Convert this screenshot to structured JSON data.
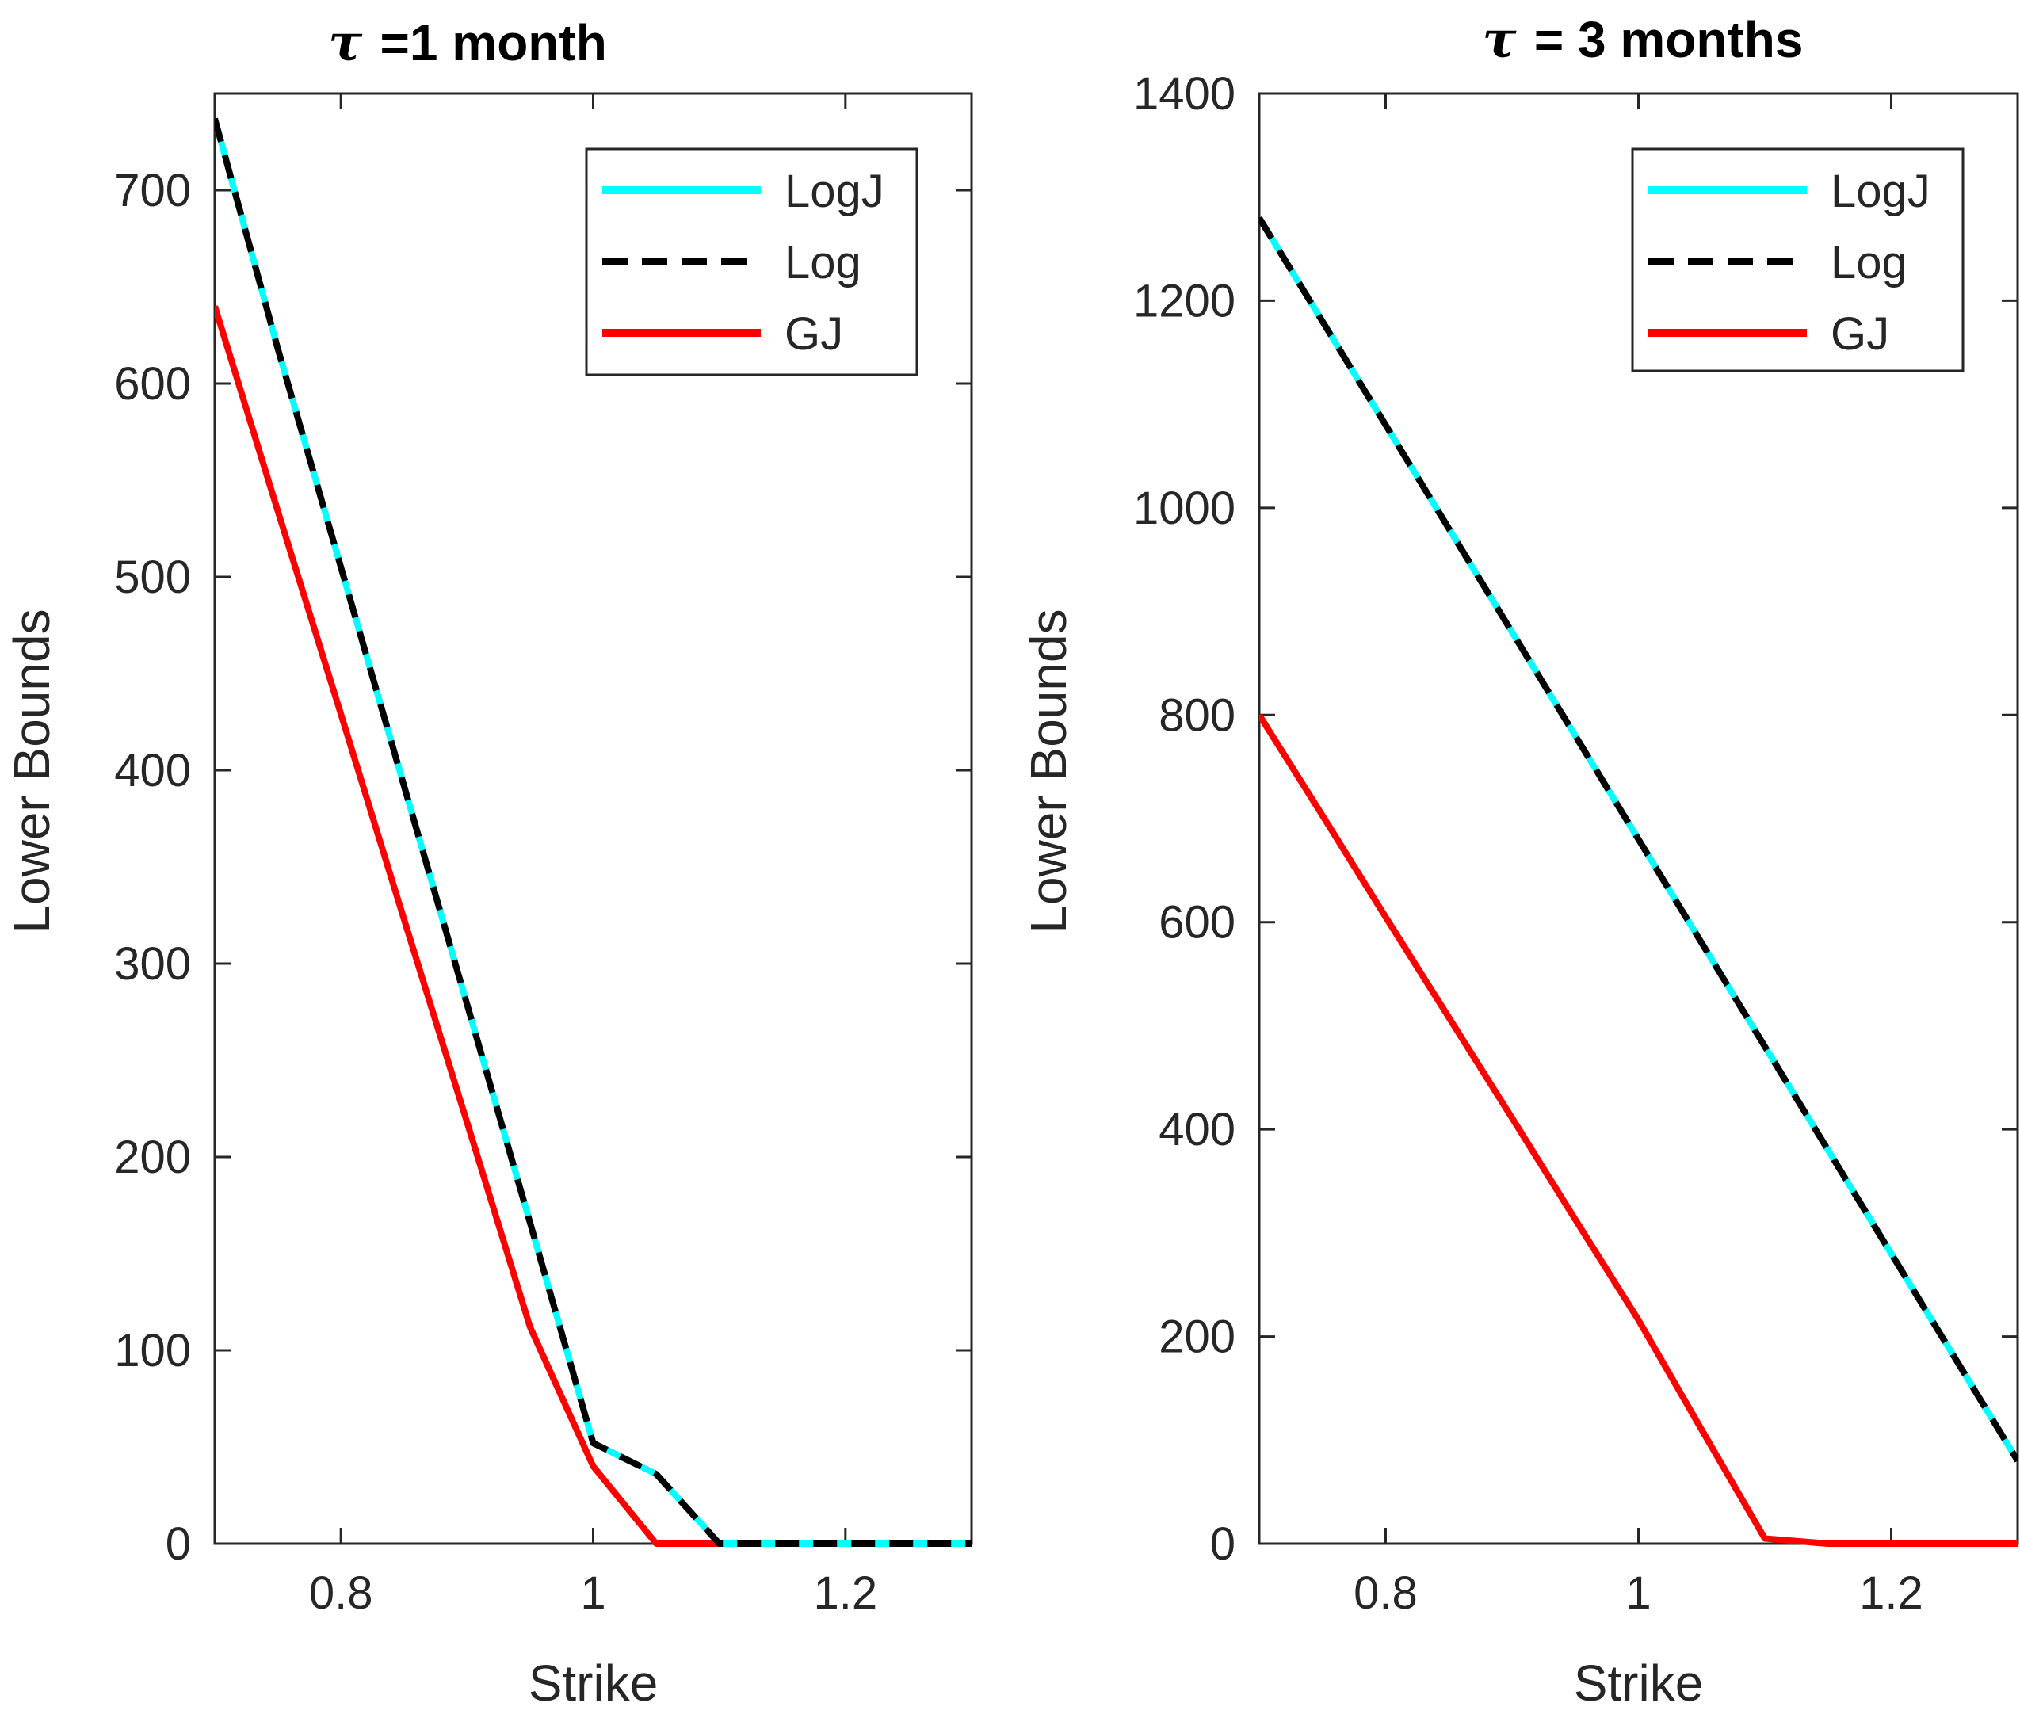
{
  "chart_data": [
    {
      "type": "line",
      "title": "=1 month",
      "title_symbol": "τ",
      "xlabel": "Strike",
      "ylabel": "Lower Bounds",
      "xlim": [
        0.7,
        1.3
      ],
      "ylim": [
        0,
        750
      ],
      "xticks": [
        0.8,
        1,
        1.2
      ],
      "xtick_labels": [
        "0.8",
        "1",
        "1.2"
      ],
      "yticks": [
        0,
        100,
        200,
        300,
        400,
        500,
        600,
        700
      ],
      "ytick_labels": [
        "0",
        "100",
        "200",
        "300",
        "400",
        "500",
        "600",
        "700"
      ],
      "legend_position": "top-right",
      "series": [
        {
          "name": "LogJ",
          "color": "#00FFFF",
          "style": "solid",
          "x": [
            0.7,
            0.75,
            0.8,
            0.85,
            0.9,
            0.95,
            1.0,
            1.05,
            1.1,
            1.15,
            1.2,
            1.25,
            1.3
          ],
          "values": [
            737,
            618,
            505,
            392,
            279,
            166,
            52,
            36,
            0,
            0,
            0,
            0,
            0
          ]
        },
        {
          "name": "Log",
          "color": "#000000",
          "style": "dashed",
          "x": [
            0.7,
            0.75,
            0.8,
            0.85,
            0.9,
            0.95,
            1.0,
            1.05,
            1.1,
            1.15,
            1.2,
            1.25,
            1.3
          ],
          "values": [
            737,
            618,
            505,
            392,
            279,
            166,
            52,
            36,
            0,
            0,
            0,
            0,
            0
          ]
        },
        {
          "name": "GJ",
          "color": "#FF0000",
          "style": "solid",
          "x": [
            0.7,
            0.75,
            0.8,
            0.85,
            0.9,
            0.95,
            1.0,
            1.05,
            1.1,
            1.15,
            1.2,
            1.25,
            1.3
          ],
          "values": [
            640,
            534,
            429,
            323,
            218,
            112,
            40,
            0,
            0,
            0,
            0,
            0,
            0
          ]
        }
      ]
    },
    {
      "type": "line",
      "title": "= 3 months",
      "title_symbol": "τ",
      "xlabel": "Strike",
      "ylabel": "Lower Bounds",
      "xlim": [
        0.7,
        1.3
      ],
      "ylim": [
        0,
        1400
      ],
      "xticks": [
        0.8,
        1,
        1.2
      ],
      "xtick_labels": [
        "0.8",
        "1",
        "1.2"
      ],
      "yticks": [
        0,
        200,
        400,
        600,
        800,
        1000,
        1200,
        1400
      ],
      "ytick_labels": [
        "0",
        "200",
        "400",
        "600",
        "800",
        "1000",
        "1200",
        "1400"
      ],
      "legend_position": "top-right",
      "series": [
        {
          "name": "LogJ",
          "color": "#00FFFF",
          "style": "solid",
          "x": [
            0.7,
            0.75,
            0.8,
            0.85,
            0.9,
            0.95,
            1.0,
            1.05,
            1.1,
            1.15,
            1.2,
            1.25,
            1.3
          ],
          "values": [
            1280,
            1180,
            1080,
            980,
            880,
            780,
            680,
            580,
            480,
            380,
            280,
            180,
            80
          ]
        },
        {
          "name": "Log",
          "color": "#000000",
          "style": "dashed",
          "x": [
            0.7,
            0.75,
            0.8,
            0.85,
            0.9,
            0.95,
            1.0,
            1.05,
            1.1,
            1.15,
            1.2,
            1.25,
            1.3
          ],
          "values": [
            1280,
            1180,
            1080,
            980,
            880,
            780,
            680,
            580,
            480,
            380,
            280,
            180,
            80
          ]
        },
        {
          "name": "GJ",
          "color": "#FF0000",
          "style": "solid",
          "x": [
            0.7,
            0.75,
            0.8,
            0.85,
            0.9,
            0.95,
            1.0,
            1.05,
            1.1,
            1.15,
            1.2,
            1.25,
            1.3
          ],
          "values": [
            800,
            703,
            605,
            508,
            411,
            313,
            216,
            110,
            5,
            0,
            0,
            0,
            0
          ]
        }
      ]
    }
  ]
}
